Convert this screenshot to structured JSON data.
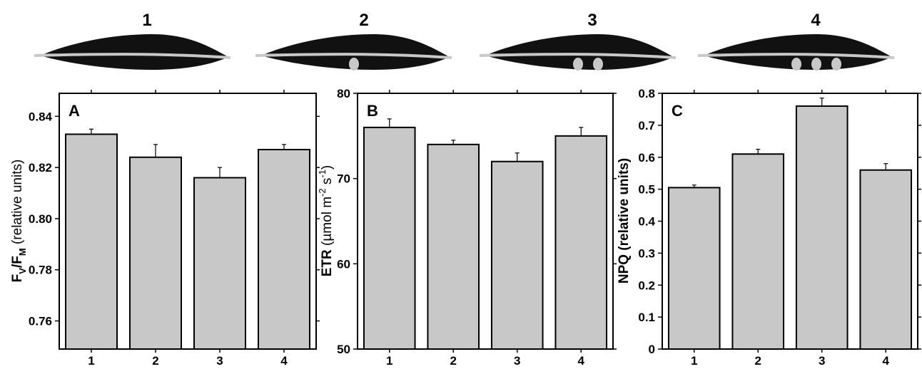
{
  "leaf_row": {
    "labels": [
      "1",
      "2",
      "3",
      "4"
    ],
    "spot_counts": [
      0,
      1,
      2,
      3
    ],
    "colors": {
      "leaf": "#111111",
      "vein": "#c8c8c8",
      "spot": "#c8c8c8"
    }
  },
  "colors": {
    "bar_fill": "#c8c8c8",
    "stroke": "#000000"
  },
  "chart_data": [
    {
      "type": "bar",
      "panel_label": "A",
      "categories": [
        "1",
        "2",
        "3",
        "4"
      ],
      "values": [
        0.833,
        0.824,
        0.816,
        0.827
      ],
      "errors": [
        0.002,
        0.005,
        0.004,
        0.002
      ],
      "ylim": [
        0.749,
        0.849
      ],
      "yticks": [
        0.76,
        0.78,
        0.8,
        0.82,
        0.84
      ],
      "ytick_labels": [
        "0.76",
        "0.78",
        "0.80",
        "0.82",
        "0.84"
      ],
      "ylabel": "FV/FM (relative units)",
      "xlabel": "",
      "grid": false
    },
    {
      "type": "bar",
      "panel_label": "B",
      "categories": [
        "1",
        "2",
        "3",
        "4"
      ],
      "values": [
        76,
        74,
        72,
        75
      ],
      "errors": [
        1,
        0.5,
        1,
        1
      ],
      "ylim": [
        50,
        80
      ],
      "yticks": [
        50,
        60,
        70,
        80
      ],
      "ytick_labels": [
        "50",
        "60",
        "70",
        "80"
      ],
      "ylabel": "ETR (µmol m-2 s-1)",
      "xlabel": "",
      "grid": false
    },
    {
      "type": "bar",
      "panel_label": "C",
      "categories": [
        "1",
        "2",
        "3",
        "4"
      ],
      "values": [
        0.505,
        0.61,
        0.76,
        0.56
      ],
      "errors": [
        0.008,
        0.015,
        0.025,
        0.02
      ],
      "ylim": [
        0,
        0.8
      ],
      "yticks": [
        0,
        0.1,
        0.2,
        0.3,
        0.4,
        0.5,
        0.6,
        0.7,
        0.8
      ],
      "ytick_labels": [
        "0",
        "0.1",
        "0.2",
        "0.3",
        "0.4",
        "0.5",
        "0.6",
        "0.7",
        "0.8"
      ],
      "ylabel": "NPQ (relative units)",
      "xlabel": "",
      "grid": false
    }
  ]
}
